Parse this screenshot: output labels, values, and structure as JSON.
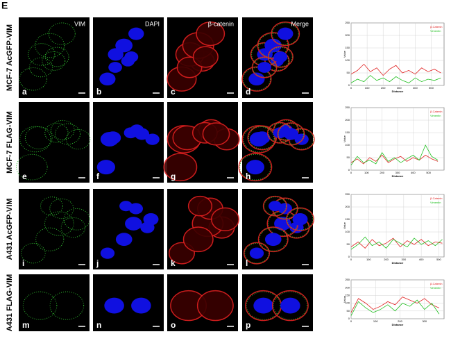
{
  "figure_label": "E",
  "channels": [
    "VIM",
    "DAPI",
    "β-catenin",
    "Merge"
  ],
  "rows": [
    {
      "label": "MCF-7 AcGFP-VIM",
      "letters": [
        "a",
        "b",
        "c",
        "d"
      ],
      "profile": {
        "type": "line",
        "xlabel": "Distance",
        "ylabel": "Value",
        "xlim": [
          0,
          580
        ],
        "ylim": [
          0,
          250
        ],
        "xticks": [
          0,
          100,
          200,
          300,
          400,
          500
        ],
        "yticks": [
          0,
          50,
          100,
          150,
          200,
          250
        ],
        "grid": true,
        "x": [
          0,
          40,
          80,
          120,
          160,
          200,
          240,
          280,
          320,
          360,
          400,
          440,
          480,
          520,
          560
        ],
        "series": [
          {
            "name": "β-Catenin",
            "color": "#e02020",
            "values": [
              45,
              60,
              85,
              55,
              70,
              40,
              65,
              80,
              50,
              60,
              45,
              70,
              55,
              65,
              50
            ]
          },
          {
            "name": "Vimentin",
            "color": "#20c020",
            "values": [
              10,
              25,
              15,
              40,
              20,
              30,
              15,
              35,
              20,
              10,
              30,
              15,
              25,
              20,
              30
            ]
          }
        ]
      }
    },
    {
      "label": "MCF-7 FLAG-VIM",
      "letters": [
        "e",
        "f",
        "g",
        "h"
      ],
      "profile": {
        "type": "line",
        "xlabel": "Distance",
        "ylabel": "Value",
        "xlim": [
          0,
          600
        ],
        "ylim": [
          0,
          250
        ],
        "xticks": [
          0,
          100,
          200,
          300,
          400,
          500
        ],
        "yticks": [
          0,
          50,
          100,
          150,
          200,
          250
        ],
        "grid": true,
        "x": [
          0,
          40,
          80,
          120,
          160,
          200,
          240,
          280,
          320,
          360,
          400,
          440,
          480,
          520,
          560
        ],
        "series": [
          {
            "name": "β-Catenin",
            "color": "#e02020",
            "values": [
              30,
              45,
              25,
              50,
              35,
              60,
              30,
              45,
              55,
              35,
              50,
              40,
              60,
              45,
              35
            ]
          },
          {
            "name": "Vimentin",
            "color": "#20c020",
            "values": [
              20,
              55,
              30,
              40,
              25,
              70,
              35,
              50,
              30,
              45,
              60,
              40,
              100,
              55,
              40
            ]
          }
        ]
      }
    },
    {
      "label": "A431 AcGFP-VIM",
      "letters": [
        "i",
        "j",
        "k",
        "l"
      ],
      "profile": {
        "type": "line",
        "xlabel": "Distance",
        "ylabel": "Value",
        "xlim": [
          0,
          530
        ],
        "ylim": [
          0,
          250
        ],
        "xticks": [
          0,
          100,
          200,
          300,
          400,
          500
        ],
        "yticks": [
          0,
          50,
          100,
          150,
          200,
          250
        ],
        "grid": true,
        "x": [
          0,
          40,
          80,
          120,
          160,
          200,
          240,
          280,
          320,
          360,
          400,
          440,
          480,
          520
        ],
        "series": [
          {
            "name": "β-Catenin",
            "color": "#e02020",
            "values": [
              40,
              60,
              35,
              70,
              45,
              55,
              75,
              40,
              65,
              50,
              70,
              45,
              60,
              55
            ]
          },
          {
            "name": "Vimentin",
            "color": "#20c020",
            "values": [
              30,
              50,
              80,
              45,
              60,
              35,
              70,
              55,
              40,
              75,
              50,
              65,
              45,
              70
            ]
          }
        ]
      }
    },
    {
      "label": "A431 FLAG-VIM",
      "letters": [
        "m",
        "n",
        "o",
        "p"
      ],
      "profile": {
        "type": "line",
        "xlabel": "Distance",
        "ylabel": "Value",
        "xlim": [
          0,
          380
        ],
        "ylim": [
          0,
          250
        ],
        "xticks": [
          0,
          100,
          200,
          300
        ],
        "yticks": [
          0,
          50,
          100,
          150,
          200,
          250
        ],
        "grid": true,
        "x": [
          0,
          30,
          60,
          90,
          120,
          150,
          180,
          210,
          240,
          270,
          300,
          330,
          360
        ],
        "series": [
          {
            "name": "β-Catenin",
            "color": "#e02020",
            "values": [
              40,
              130,
              100,
              60,
              80,
              110,
              90,
              140,
              120,
              100,
              130,
              90,
              70
            ]
          },
          {
            "name": "Vimentin",
            "color": "#20c020",
            "values": [
              20,
              110,
              70,
              40,
              60,
              90,
              50,
              100,
              80,
              120,
              60,
              100,
              30
            ]
          }
        ]
      }
    }
  ]
}
